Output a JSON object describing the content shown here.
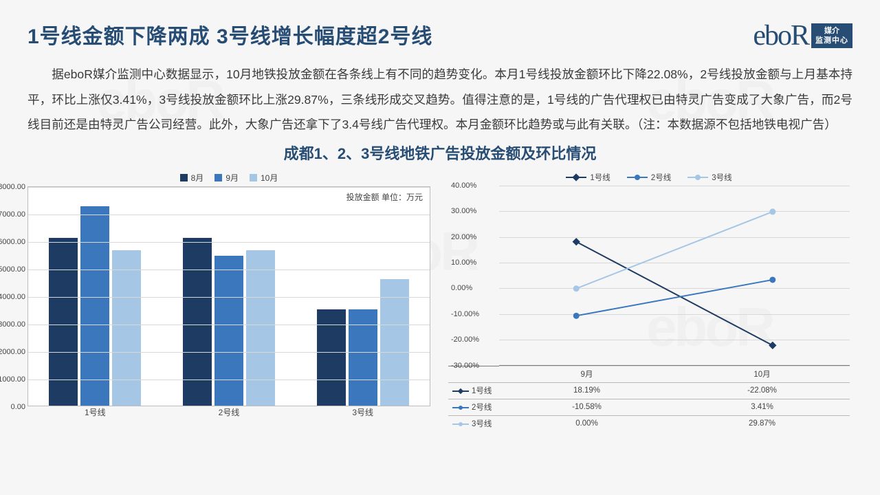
{
  "header": {
    "title": "1号线金额下降两成 3号线增长幅度超2号线",
    "logo_text": "eboR",
    "logo_box_l1": "媒介",
    "logo_box_l2": "监测中心"
  },
  "paragraph": "据eboR媒介监测中心数据显示，10月地铁投放金额在各条线上有不同的趋势变化。本月1号线投放金额环比下降22.08%，2号线投放金额与上月基本持平，环比上涨仅3.41%，3号线投放金额环比上涨29.87%，三条线形成交叉趋势。值得注意的是，1号线的广告代理权已由特灵广告变成了大象广告，而2号线目前还是由特灵广告公司经营。此外，大象广告还拿下了3.4号线广告代理权。本月金额环比趋势或与此有关联。（注：本数据源不包括地铁电视广告）",
  "chart_title": "成都1、2、3号线地铁广告投放金额及环比情况",
  "bar_chart": {
    "type": "bar",
    "note": "投放金额 单位：万元",
    "y_max": 8000,
    "y_step": 1000,
    "y_labels": [
      "0.00",
      "1000.00",
      "2000.00",
      "3000.00",
      "4000.00",
      "5000.00",
      "6000.00",
      "7000.00",
      "8000.00"
    ],
    "categories": [
      "1号线",
      "2号线",
      "3号线"
    ],
    "series": [
      {
        "name": "8月",
        "color": "#1d3b63",
        "values": [
          6100,
          6100,
          3500
        ]
      },
      {
        "name": "9月",
        "color": "#3a77bd",
        "values": [
          7250,
          5450,
          3500
        ]
      },
      {
        "name": "10月",
        "color": "#a6c6e6",
        "values": [
          5650,
          5650,
          4600
        ]
      }
    ],
    "background_color": "#ffffff",
    "border_color": "#bcbcbc",
    "grid_color": "#d8d8d8",
    "label_fontsize": 11
  },
  "line_chart": {
    "type": "line",
    "y_min": -30,
    "y_max": 40,
    "y_step": 10,
    "y_labels": [
      "-30.00%",
      "-20.00%",
      "-10.00%",
      "0.00%",
      "10.00%",
      "20.00%",
      "30.00%",
      "40.00%"
    ],
    "x_labels": [
      "9月",
      "10月"
    ],
    "series": [
      {
        "name": "1号线",
        "color": "#1d3b63",
        "marker": "diamond",
        "values": [
          18.19,
          -22.08
        ]
      },
      {
        "name": "2号线",
        "color": "#3a77bd",
        "marker": "circle",
        "values": [
          -10.58,
          3.41
        ]
      },
      {
        "name": "3号线",
        "color": "#a6c6e6",
        "marker": "circle",
        "values": [
          0.0,
          29.87
        ]
      }
    ],
    "table": {
      "cols": [
        "",
        "9月",
        "10月"
      ],
      "rows": [
        [
          "1号线",
          "18.19%",
          "-22.08%"
        ],
        [
          "2号线",
          "-10.58%",
          "3.41%"
        ],
        [
          "3号线",
          "0.00%",
          "29.87%"
        ]
      ]
    },
    "grid_color": "#d8d8d8",
    "axis_color": "#7a7a7a",
    "label_fontsize": 11
  },
  "watermark_text": "eboR"
}
